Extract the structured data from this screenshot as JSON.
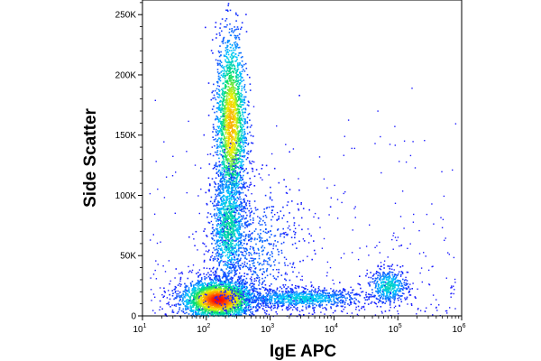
{
  "chart_data": {
    "type": "scatter",
    "style": "density-pseudocolor",
    "title": "",
    "xlabel": "IgE APC",
    "ylabel": "Side Scatter",
    "x_scale": "log",
    "xlim": [
      10,
      1000000
    ],
    "x_ticks": [
      {
        "base": "10",
        "exp": "1",
        "value": 10
      },
      {
        "base": "10",
        "exp": "2",
        "value": 100
      },
      {
        "base": "10",
        "exp": "3",
        "value": 1000
      },
      {
        "base": "10",
        "exp": "4",
        "value": 10000
      },
      {
        "base": "10",
        "exp": "5",
        "value": 100000
      },
      {
        "base": "10",
        "exp": "6",
        "value": 1000000
      }
    ],
    "y_scale": "linear",
    "ylim": [
      0,
      262144
    ],
    "y_ticks": [
      {
        "label": "0",
        "value": 0
      },
      {
        "label": "50K",
        "value": 50000
      },
      {
        "label": "100K",
        "value": 100000
      },
      {
        "label": "150K",
        "value": 150000
      },
      {
        "label": "200K",
        "value": 200000
      },
      {
        "label": "250K",
        "value": 250000
      }
    ],
    "grid": false,
    "legend": "none",
    "density_colormap": [
      "#1a1aff",
      "#00c8ff",
      "#00e070",
      "#f0f000",
      "#ff8000",
      "#ff0000"
    ],
    "populations": [
      {
        "x_center": 150,
        "y_center": 14000,
        "x_spread_decades": 0.28,
        "y_spread": 8000,
        "share": 0.3,
        "peak_density": 1.0
      },
      {
        "x_center": 240,
        "y_center": 160000,
        "x_spread_decades": 0.12,
        "y_spread": 38000,
        "share": 0.22,
        "peak_density": 0.72
      },
      {
        "x_center": 220,
        "y_center": 75000,
        "x_spread_decades": 0.14,
        "y_spread": 25000,
        "share": 0.12,
        "peak_density": 0.35
      },
      {
        "x_center": 3000,
        "y_center": 15000,
        "x_spread_decades": 0.5,
        "y_spread": 4000,
        "share": 0.1,
        "peak_density": 0.25
      },
      {
        "x_center": 70000,
        "y_center": 25000,
        "x_spread_decades": 0.15,
        "y_spread": 7000,
        "share": 0.05,
        "peak_density": 0.3
      },
      {
        "x_center": 600,
        "y_center": 55000,
        "x_spread_decades": 0.35,
        "y_spread": 30000,
        "share": 0.06,
        "peak_density": 0.1
      }
    ]
  }
}
